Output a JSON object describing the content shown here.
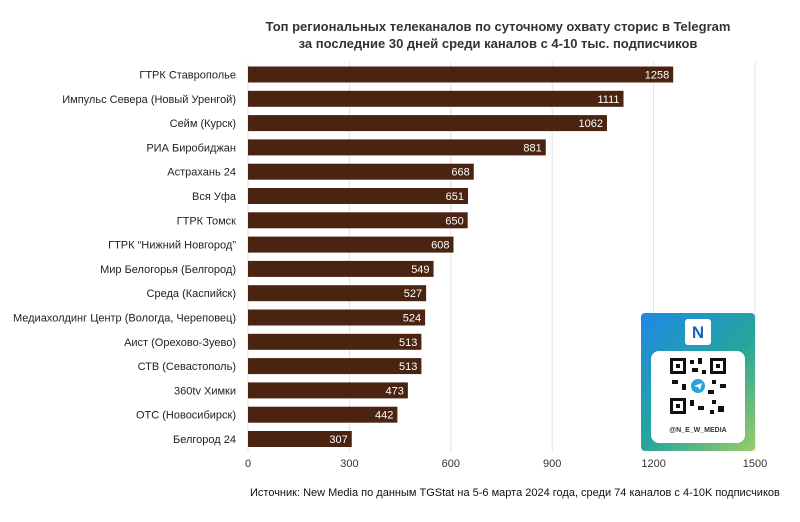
{
  "chart_data": {
    "type": "bar",
    "orientation": "horizontal",
    "title_line1": "Топ региональных телеканалов по суточному охвату сторис в Telegram",
    "title_line2": "за последние 30 дней среди каналов с 4-10 тыс. подписчиков",
    "categories": [
      "ГТРК Ставрополье",
      "Импульс Севера (Новый Уренгой)",
      "Сейм (Курск)",
      "РИА Биробиджан",
      "Астрахань 24",
      "Вся Уфа",
      "ГТРК Томск",
      "ГТРК “Нижний Новгород”",
      "Мир Белогорья (Белгород)",
      "Среда (Каспийск)",
      "Медиахолдинг Центр (Вологда, Череповец)",
      "Аист (Орехово-Зуево)",
      "СТВ (Севастополь)",
      "360tv Химки",
      "ОТС (Новосибирск)",
      "Белгород 24"
    ],
    "values": [
      1258,
      1111,
      1062,
      881,
      668,
      651,
      650,
      608,
      549,
      527,
      524,
      513,
      513,
      473,
      442,
      307
    ],
    "xlim": [
      0,
      1500
    ],
    "xticks": [
      "0",
      "300",
      "600",
      "900",
      "1200",
      "1500"
    ],
    "grid": "vertical",
    "bar_color": "#4a2410",
    "label_color": "#ffffff"
  },
  "source": "Источник: New Media по данным TGStat на 5-6 марта 2024 года, среди 74 каналов с 4-10K подписчиков",
  "promo": {
    "handle": "@N_E_W_MEDIA",
    "logo_letter": "N",
    "qr_icon": "qr-code-icon",
    "colors": [
      "#1e88e5",
      "#26a69a",
      "#9ccc65"
    ]
  }
}
